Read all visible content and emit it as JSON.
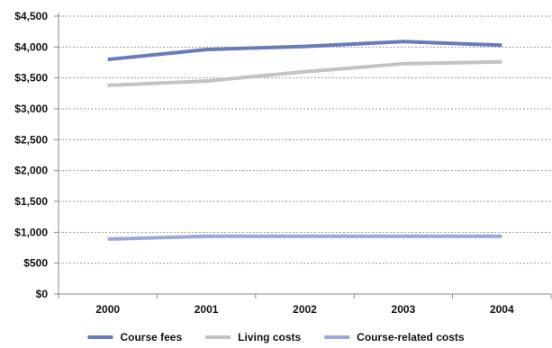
{
  "chart_data": {
    "type": "line",
    "title": "",
    "xlabel": "",
    "ylabel": "",
    "categories": [
      "2000",
      "2001",
      "2002",
      "2003",
      "2004"
    ],
    "ylim": [
      0,
      4500
    ],
    "y_ticks": [
      0,
      500,
      1000,
      1500,
      2000,
      2500,
      3000,
      3500,
      4000,
      4500
    ],
    "y_tick_labels": [
      "$0",
      "$500",
      "$1,000",
      "$1,500",
      "$2,000",
      "$2,500",
      "$3,000",
      "$3,500",
      "$4,000",
      "$4,500"
    ],
    "grid": "horizontal dashed",
    "legend_position": "bottom",
    "series": [
      {
        "name": "Course fees",
        "color": "#6a7bbb",
        "values": [
          3800,
          3960,
          4010,
          4090,
          4030
        ]
      },
      {
        "name": "Living costs",
        "color": "#c3c3c3",
        "values": [
          3380,
          3450,
          3600,
          3730,
          3760
        ]
      },
      {
        "name": "Course-related costs",
        "color": "#9ea8d8",
        "values": [
          890,
          935,
          935,
          935,
          935
        ]
      }
    ]
  }
}
